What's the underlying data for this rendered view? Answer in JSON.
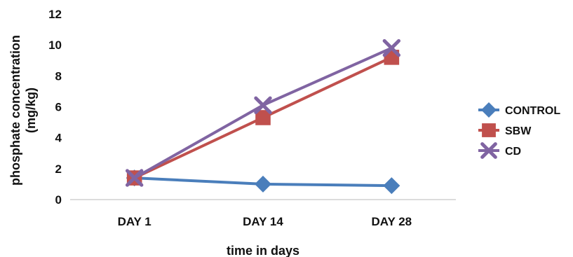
{
  "chart_data": {
    "type": "line",
    "categories": [
      "DAY 1",
      "DAY 14",
      "DAY 28"
    ],
    "xlabel": "time in days",
    "ylabel": "phosphate concentration (mg/kg)",
    "ylim": [
      0,
      12
    ],
    "yticks": [
      0,
      2,
      4,
      6,
      8,
      10,
      12
    ],
    "grid": false,
    "legend_position": "right",
    "series": [
      {
        "name": "CONTROL",
        "values": [
          1.4,
          1.0,
          0.9
        ],
        "color": "#4a7ebb",
        "marker": "diamond"
      },
      {
        "name": "SBW",
        "values": [
          1.4,
          5.3,
          9.2
        ],
        "color": "#c0504d",
        "marker": "square"
      },
      {
        "name": "CD",
        "values": [
          1.4,
          6.1,
          9.8
        ],
        "color": "#8064a2",
        "marker": "x"
      }
    ]
  }
}
